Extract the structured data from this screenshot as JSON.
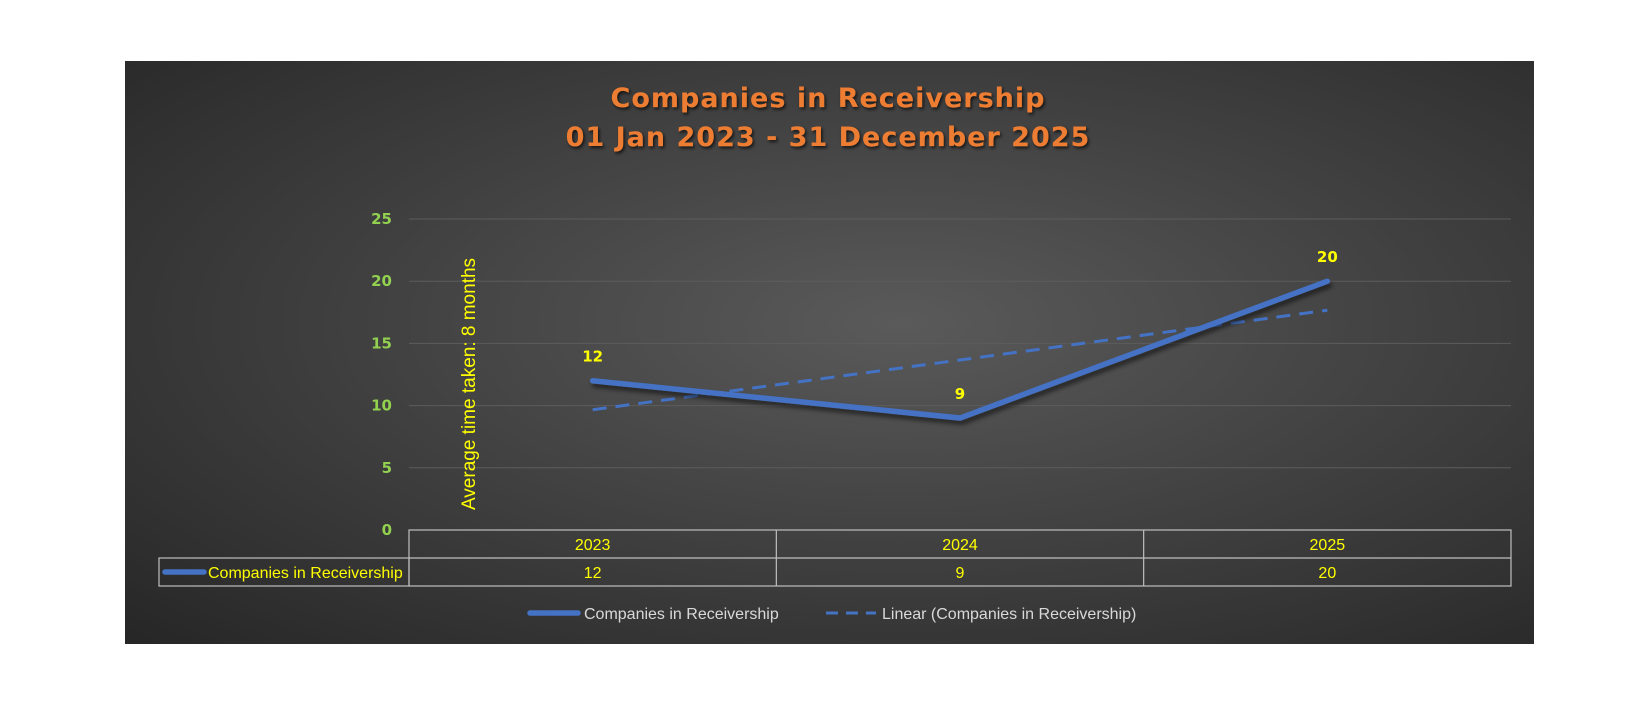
{
  "chart_data": {
    "type": "line",
    "title": "Companies in Receivership",
    "subtitle": "01 Jan 2023 - 31 December 2025",
    "categories": [
      "2023",
      "2024",
      "2025"
    ],
    "series": [
      {
        "name": "Companies in Receivership",
        "values": [
          12,
          9,
          20
        ],
        "color": "#4472C4"
      }
    ],
    "trendline": {
      "name": "Linear (Companies in Receivership)",
      "type": "linear",
      "color": "#4472C4"
    },
    "ylim": [
      0,
      25
    ],
    "yticks": [
      0,
      5,
      10,
      15,
      20,
      25
    ],
    "grid": true,
    "data_labels": true,
    "data_table": true,
    "legend_position": "bottom",
    "annotation": "Average time taken: 8 months"
  },
  "colors": {
    "title": "#ED7D31",
    "tick_labels": "#92D050",
    "data_labels": "#FFFF00",
    "table_text": "#FFFF00",
    "legend_text": "#D9D9D9",
    "gridline": "#5c5c5c",
    "table_border": "#bfbfbf"
  }
}
